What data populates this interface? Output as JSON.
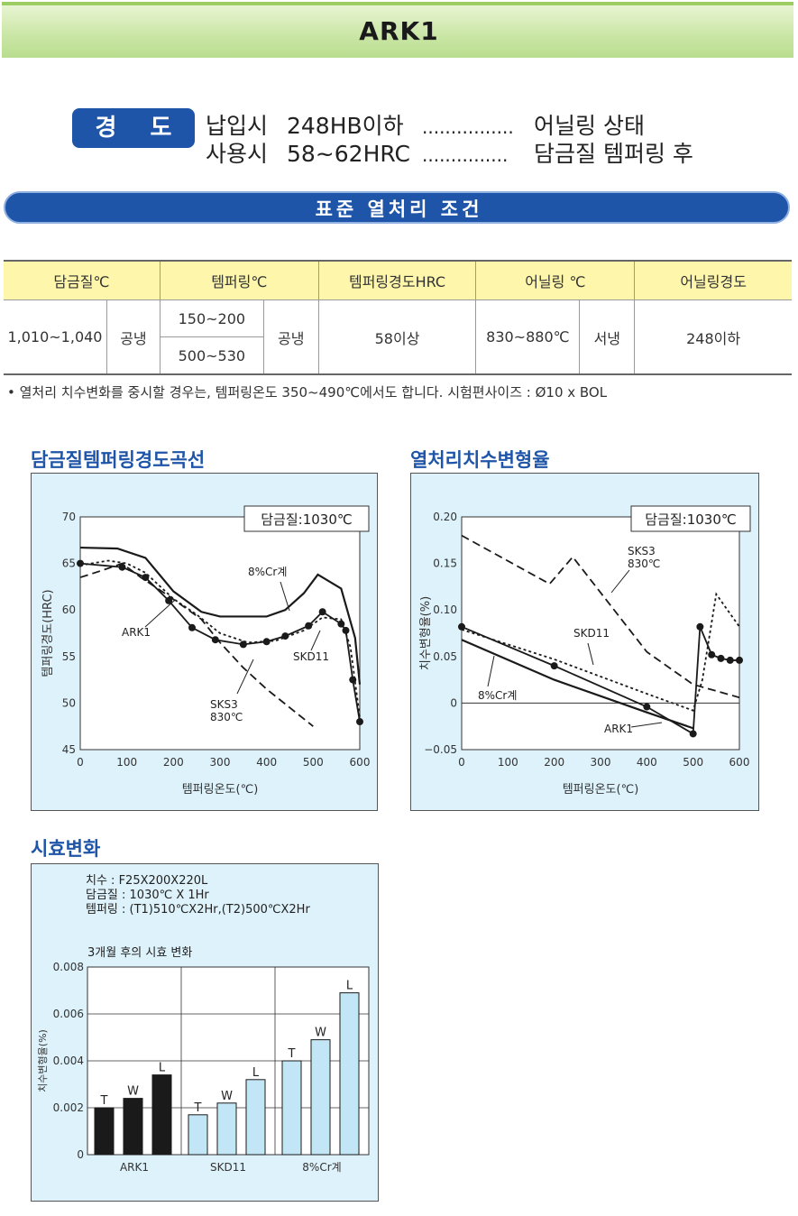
{
  "title": "ARK1",
  "hardness": {
    "badge": "경 도",
    "rows": [
      {
        "cond": "납입시",
        "value": "248HB이하",
        "dots": "................",
        "state": "어닐링 상태"
      },
      {
        "cond": "사용시",
        "value": "58~62HRC",
        "dots": "...............",
        "state": "담금질 템퍼링 후"
      }
    ]
  },
  "section_title": "표준 열처리 조건",
  "table": {
    "headers": [
      "담금질℃",
      "템퍼링℃",
      "템퍼링경도HRC",
      "어닐링 ℃",
      "어닐링경도"
    ],
    "quench_temp": "1,010~1,040",
    "quench_cool": "공냉",
    "temper_temp_1": "150~200",
    "temper_temp_2": "500~530",
    "temper_cool": "공냉",
    "temper_hardness": "58이상",
    "anneal_temp": "830~880℃",
    "anneal_cool": "서냉",
    "anneal_hardness": "248이하"
  },
  "note": "• 열처리 치수변화를 중시할 경우는, 템퍼링온도 350~490℃에서도 합니다.    시험편사이즈 : Ø10 x BOL",
  "chart_data": [
    {
      "type": "line",
      "title": "담금질템퍼링경도곡선",
      "box_label": "담금질:1030℃",
      "xlabel": "템퍼링온도(℃)",
      "ylabel": "템퍼링경도(HRC)",
      "xlim": [
        0,
        600
      ],
      "ylim": [
        45,
        70
      ],
      "xticks": [
        "0",
        "100",
        "200",
        "300",
        "400",
        "500",
        "600"
      ],
      "yticks": [
        "45",
        "50",
        "55",
        "60",
        "65",
        "70"
      ],
      "series": [
        {
          "name": "ARK1",
          "style": "solid-dots",
          "x": [
            0,
            90,
            140,
            190,
            240,
            290,
            350,
            400,
            440,
            490,
            520,
            560,
            570,
            585,
            600
          ],
          "y": [
            65,
            64.6,
            63.5,
            61,
            58.1,
            56.8,
            56.3,
            56.6,
            57.2,
            58.3,
            59.8,
            58.5,
            57.8,
            52.5,
            48
          ]
        },
        {
          "name": "8%Cr계",
          "style": "solid",
          "x": [
            0,
            80,
            140,
            200,
            260,
            300,
            400,
            440,
            480,
            510,
            560,
            590,
            600
          ],
          "y": [
            66.7,
            66.6,
            65.6,
            62,
            59.8,
            59.3,
            59.3,
            60,
            61.8,
            63.8,
            62.3,
            57,
            52
          ]
        },
        {
          "name": "SKD11",
          "style": "dotted",
          "x": [
            0,
            60,
            100,
            140,
            200,
            250,
            300,
            360,
            420,
            480,
            520,
            560,
            580,
            600
          ],
          "y": [
            64.8,
            65.3,
            65,
            64,
            61.2,
            59.5,
            57.5,
            56.5,
            56.7,
            57.8,
            59.2,
            59,
            56,
            48.5
          ]
        },
        {
          "name": "SKS3 830℃",
          "style": "dashed",
          "x": [
            0,
            50,
            90,
            130,
            190,
            260,
            300,
            350,
            400,
            450,
            500
          ],
          "y": [
            63.5,
            64.3,
            65,
            63.5,
            61.5,
            59,
            56.5,
            53.8,
            51.5,
            49.5,
            47.5
          ]
        }
      ]
    },
    {
      "type": "line",
      "title": "열처리치수변형율",
      "box_label": "담금질:1030℃",
      "xlabel": "템퍼링온도(℃)",
      "ylabel": "치수변형율(%)",
      "xlim": [
        0,
        600
      ],
      "ylim": [
        -0.05,
        0.2
      ],
      "xticks": [
        "0",
        "100",
        "200",
        "300",
        "400",
        "500",
        "600"
      ],
      "yticks": [
        "−0.05",
        "0",
        "0.05",
        "0.10",
        "0.15",
        "0.20"
      ],
      "series": [
        {
          "name": "ARK1",
          "style": "solid-dots",
          "x": [
            0,
            200,
            400,
            500,
            515,
            540,
            560,
            580,
            600
          ],
          "y": [
            0.082,
            0.04,
            -0.004,
            -0.033,
            0.082,
            0.052,
            0.048,
            0.046,
            0.046
          ]
        },
        {
          "name": "8%Cr계",
          "style": "solid",
          "x": [
            0,
            200,
            400,
            500
          ],
          "y": [
            0.068,
            0.025,
            -0.01,
            -0.027
          ]
        },
        {
          "name": "SKD11",
          "style": "dotted",
          "x": [
            0,
            200,
            400,
            500,
            520,
            550,
            600
          ],
          "y": [
            0.079,
            0.047,
            0.01,
            -0.008,
            0.025,
            0.117,
            0.082
          ]
        },
        {
          "name": "SKS3 830℃",
          "style": "dashed",
          "x": [
            0,
            190,
            240,
            400,
            500,
            600
          ],
          "y": [
            0.18,
            0.128,
            0.157,
            0.055,
            0.02,
            0.006
          ]
        }
      ]
    },
    {
      "type": "bar",
      "title": "시효변화",
      "info": [
        "치수 : F25X200X220L",
        "담금질 : 1030℃ X 1Hr",
        "템퍼링 : (T1)510℃X2Hr,(T2)500℃X2Hr"
      ],
      "subtitle": "3개월 후의 시효 변화",
      "ylabel": "치수변형율(%)",
      "ylim": [
        0,
        0.008
      ],
      "yticks": [
        "0",
        "0.002",
        "0.004",
        "0.006",
        "0.008"
      ],
      "categories": [
        "ARK1",
        "SKD11",
        "8%Cr계"
      ],
      "bar_labels": [
        "T",
        "W",
        "L"
      ],
      "series": [
        {
          "name": "ARK1",
          "color": "#1a1a1a",
          "values": [
            0.002,
            0.0024,
            0.0034
          ]
        },
        {
          "name": "SKD11",
          "color": "#c3e6f7",
          "values": [
            0.0017,
            0.0022,
            0.0032
          ]
        },
        {
          "name": "8%Cr계",
          "color": "#c3e6f7",
          "values": [
            0.004,
            0.0049,
            0.0069
          ]
        }
      ]
    }
  ]
}
